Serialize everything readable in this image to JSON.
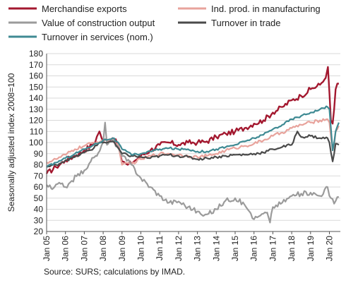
{
  "chart_data": {
    "type": "line",
    "ylabel": "Seasonally adjusted index 2008=100",
    "ylim": [
      20,
      180
    ],
    "yticks": [
      20,
      30,
      40,
      50,
      60,
      70,
      80,
      90,
      100,
      110,
      120,
      130,
      140,
      150,
      160,
      170,
      180
    ],
    "xticks": [
      "Jan 05",
      "Jan 06",
      "Jan 07",
      "Jan 08",
      "Jan 09",
      "Jan 10",
      "Jan 11",
      "Jan 12",
      "Jan 13",
      "Jan 14",
      "Jan 15",
      "Jan 16",
      "Jan 17",
      "Jan 18",
      "Jan 19",
      "Jan 20"
    ],
    "x_start": "2005-01",
    "grid": "horizontal",
    "legend_position": "top",
    "series": [
      {
        "name": "Merchandise exports",
        "color": "#a3182f",
        "points": [
          [
            2005.0,
            72
          ],
          [
            2005.5,
            78
          ],
          [
            2006.0,
            84
          ],
          [
            2006.5,
            88
          ],
          [
            2007.0,
            93
          ],
          [
            2007.5,
            99
          ],
          [
            2007.8,
            110
          ],
          [
            2008.0,
            101
          ],
          [
            2008.5,
            104
          ],
          [
            2008.8,
            98
          ],
          [
            2009.0,
            83
          ],
          [
            2009.3,
            80
          ],
          [
            2009.8,
            85
          ],
          [
            2010.0,
            88
          ],
          [
            2010.5,
            93
          ],
          [
            2011.0,
            98
          ],
          [
            2011.5,
            100
          ],
          [
            2012.0,
            98
          ],
          [
            2012.5,
            100
          ],
          [
            2013.0,
            100
          ],
          [
            2013.5,
            101
          ],
          [
            2014.0,
            105
          ],
          [
            2014.5,
            108
          ],
          [
            2015.0,
            110
          ],
          [
            2015.5,
            113
          ],
          [
            2016.0,
            117
          ],
          [
            2016.5,
            120
          ],
          [
            2017.0,
            127
          ],
          [
            2017.5,
            132
          ],
          [
            2018.0,
            138
          ],
          [
            2018.5,
            142
          ],
          [
            2019.0,
            148
          ],
          [
            2019.5,
            152
          ],
          [
            2019.8,
            158
          ],
          [
            2019.92,
            168
          ],
          [
            2020.0,
            145
          ],
          [
            2020.08,
            120
          ],
          [
            2020.17,
            117
          ],
          [
            2020.25,
            130
          ],
          [
            2020.33,
            148
          ],
          [
            2020.42,
            153
          ],
          [
            2020.5,
            153
          ]
        ]
      },
      {
        "name": "Ind. prod. in manufacturing",
        "color": "#e8a39c",
        "points": [
          [
            2005.0,
            82
          ],
          [
            2005.5,
            85
          ],
          [
            2006.0,
            89
          ],
          [
            2006.5,
            94
          ],
          [
            2007.0,
            97
          ],
          [
            2007.5,
            100
          ],
          [
            2008.0,
            102
          ],
          [
            2008.5,
            103
          ],
          [
            2008.8,
            98
          ],
          [
            2009.0,
            80
          ],
          [
            2009.5,
            81
          ],
          [
            2010.0,
            85
          ],
          [
            2010.5,
            88
          ],
          [
            2011.0,
            90
          ],
          [
            2011.5,
            90
          ],
          [
            2012.0,
            89
          ],
          [
            2012.5,
            88
          ],
          [
            2013.0,
            87
          ],
          [
            2013.5,
            88
          ],
          [
            2014.0,
            90
          ],
          [
            2014.5,
            93
          ],
          [
            2015.0,
            95
          ],
          [
            2015.5,
            97
          ],
          [
            2016.0,
            99
          ],
          [
            2016.5,
            102
          ],
          [
            2017.0,
            106
          ],
          [
            2017.5,
            109
          ],
          [
            2018.0,
            113
          ],
          [
            2018.5,
            116
          ],
          [
            2019.0,
            118
          ],
          [
            2019.5,
            120
          ],
          [
            2019.9,
            121
          ],
          [
            2020.0,
            118
          ],
          [
            2020.17,
            93
          ],
          [
            2020.25,
            97
          ],
          [
            2020.33,
            110
          ],
          [
            2020.5,
            115
          ]
        ]
      },
      {
        "name": "Value of construction output",
        "color": "#9b9b9b",
        "points": [
          [
            2005.0,
            62
          ],
          [
            2005.3,
            58
          ],
          [
            2005.6,
            63
          ],
          [
            2006.0,
            60
          ],
          [
            2006.3,
            65
          ],
          [
            2006.6,
            70
          ],
          [
            2007.0,
            75
          ],
          [
            2007.3,
            82
          ],
          [
            2007.6,
            88
          ],
          [
            2007.8,
            92
          ],
          [
            2008.0,
            100
          ],
          [
            2008.1,
            118
          ],
          [
            2008.2,
            98
          ],
          [
            2008.5,
            102
          ],
          [
            2008.8,
            96
          ],
          [
            2009.0,
            88
          ],
          [
            2009.5,
            80
          ],
          [
            2010.0,
            68
          ],
          [
            2010.5,
            60
          ],
          [
            2011.0,
            52
          ],
          [
            2011.5,
            46
          ],
          [
            2012.0,
            47
          ],
          [
            2012.5,
            42
          ],
          [
            2013.0,
            38
          ],
          [
            2013.3,
            34
          ],
          [
            2013.6,
            36
          ],
          [
            2014.0,
            40
          ],
          [
            2014.5,
            48
          ],
          [
            2015.0,
            50
          ],
          [
            2015.5,
            44
          ],
          [
            2015.8,
            37
          ],
          [
            2016.0,
            31
          ],
          [
            2016.3,
            34
          ],
          [
            2016.7,
            37
          ],
          [
            2016.85,
            28
          ],
          [
            2017.0,
            42
          ],
          [
            2017.5,
            46
          ],
          [
            2018.0,
            52
          ],
          [
            2018.5,
            54
          ],
          [
            2019.0,
            55
          ],
          [
            2019.5,
            52
          ],
          [
            2019.9,
            60
          ],
          [
            2020.0,
            52
          ],
          [
            2020.25,
            45
          ],
          [
            2020.42,
            51
          ],
          [
            2020.5,
            51
          ]
        ]
      },
      {
        "name": "Turnover in trade",
        "color": "#4a4a4a",
        "points": [
          [
            2005.0,
            78
          ],
          [
            2005.5,
            80
          ],
          [
            2006.0,
            84
          ],
          [
            2006.5,
            87
          ],
          [
            2007.0,
            91
          ],
          [
            2007.5,
            95
          ],
          [
            2007.8,
            100
          ],
          [
            2008.0,
            100
          ],
          [
            2008.5,
            101
          ],
          [
            2008.8,
            95
          ],
          [
            2009.0,
            90
          ],
          [
            2009.5,
            88
          ],
          [
            2010.0,
            87
          ],
          [
            2010.5,
            86
          ],
          [
            2011.0,
            88
          ],
          [
            2011.5,
            89
          ],
          [
            2012.0,
            88
          ],
          [
            2012.5,
            87
          ],
          [
            2013.0,
            85
          ],
          [
            2013.5,
            86
          ],
          [
            2014.0,
            87
          ],
          [
            2014.5,
            88
          ],
          [
            2015.0,
            89
          ],
          [
            2015.5,
            89
          ],
          [
            2016.0,
            90
          ],
          [
            2016.5,
            91
          ],
          [
            2017.0,
            94
          ],
          [
            2017.5,
            96
          ],
          [
            2018.0,
            98
          ],
          [
            2018.3,
            110
          ],
          [
            2018.5,
            105
          ],
          [
            2019.0,
            106
          ],
          [
            2019.5,
            104
          ],
          [
            2019.9,
            104
          ],
          [
            2020.0,
            100
          ],
          [
            2020.17,
            83
          ],
          [
            2020.25,
            90
          ],
          [
            2020.33,
            99
          ],
          [
            2020.5,
            98
          ]
        ]
      },
      {
        "name": "Turnover in services (nom.)",
        "color": "#3f8a93",
        "points": [
          [
            2005.0,
            78
          ],
          [
            2005.5,
            82
          ],
          [
            2006.0,
            86
          ],
          [
            2006.5,
            90
          ],
          [
            2007.0,
            94
          ],
          [
            2007.5,
            98
          ],
          [
            2008.0,
            102
          ],
          [
            2008.5,
            104
          ],
          [
            2008.8,
            100
          ],
          [
            2009.0,
            94
          ],
          [
            2009.5,
            89
          ],
          [
            2010.0,
            90
          ],
          [
            2010.5,
            92
          ],
          [
            2011.0,
            94
          ],
          [
            2011.5,
            95
          ],
          [
            2012.0,
            94
          ],
          [
            2012.5,
            94
          ],
          [
            2013.0,
            92
          ],
          [
            2013.5,
            92
          ],
          [
            2014.0,
            94
          ],
          [
            2014.5,
            96
          ],
          [
            2015.0,
            98
          ],
          [
            2015.5,
            101
          ],
          [
            2016.0,
            104
          ],
          [
            2016.5,
            107
          ],
          [
            2017.0,
            112
          ],
          [
            2017.5,
            116
          ],
          [
            2018.0,
            121
          ],
          [
            2018.5,
            124
          ],
          [
            2019.0,
            127
          ],
          [
            2019.5,
            130
          ],
          [
            2019.9,
            132
          ],
          [
            2020.0,
            130
          ],
          [
            2020.17,
            93
          ],
          [
            2020.25,
            100
          ],
          [
            2020.33,
            110
          ],
          [
            2020.5,
            118
          ]
        ]
      }
    ]
  },
  "source": "Source: SURS; calculations by IMAD."
}
